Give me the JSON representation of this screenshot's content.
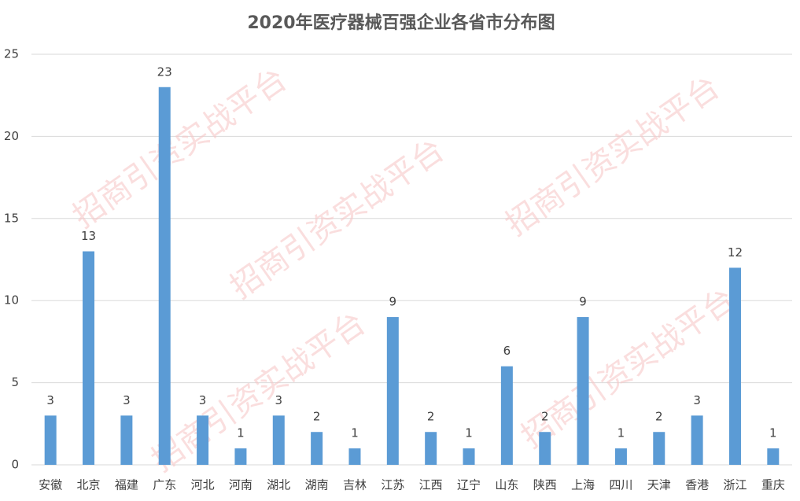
{
  "chart_data": {
    "type": "bar",
    "title": "2020年医疗器械百强企业各省市分布图",
    "watermark": "招商引资实战平台",
    "categories": [
      "安徽",
      "北京",
      "福建",
      "广东",
      "河北",
      "河南",
      "湖北",
      "湖南",
      "吉林",
      "江苏",
      "江西",
      "辽宁",
      "山东",
      "陕西",
      "上海",
      "四川",
      "天津",
      "香港",
      "浙江",
      "重庆"
    ],
    "values": [
      3,
      13,
      3,
      23,
      3,
      1,
      3,
      2,
      1,
      9,
      2,
      1,
      6,
      2,
      9,
      1,
      2,
      3,
      12,
      1
    ],
    "color": "#5b9bd5",
    "ylim": [
      0,
      25
    ],
    "yticks": [
      0,
      5,
      10,
      15,
      20,
      25
    ],
    "grid": true
  }
}
